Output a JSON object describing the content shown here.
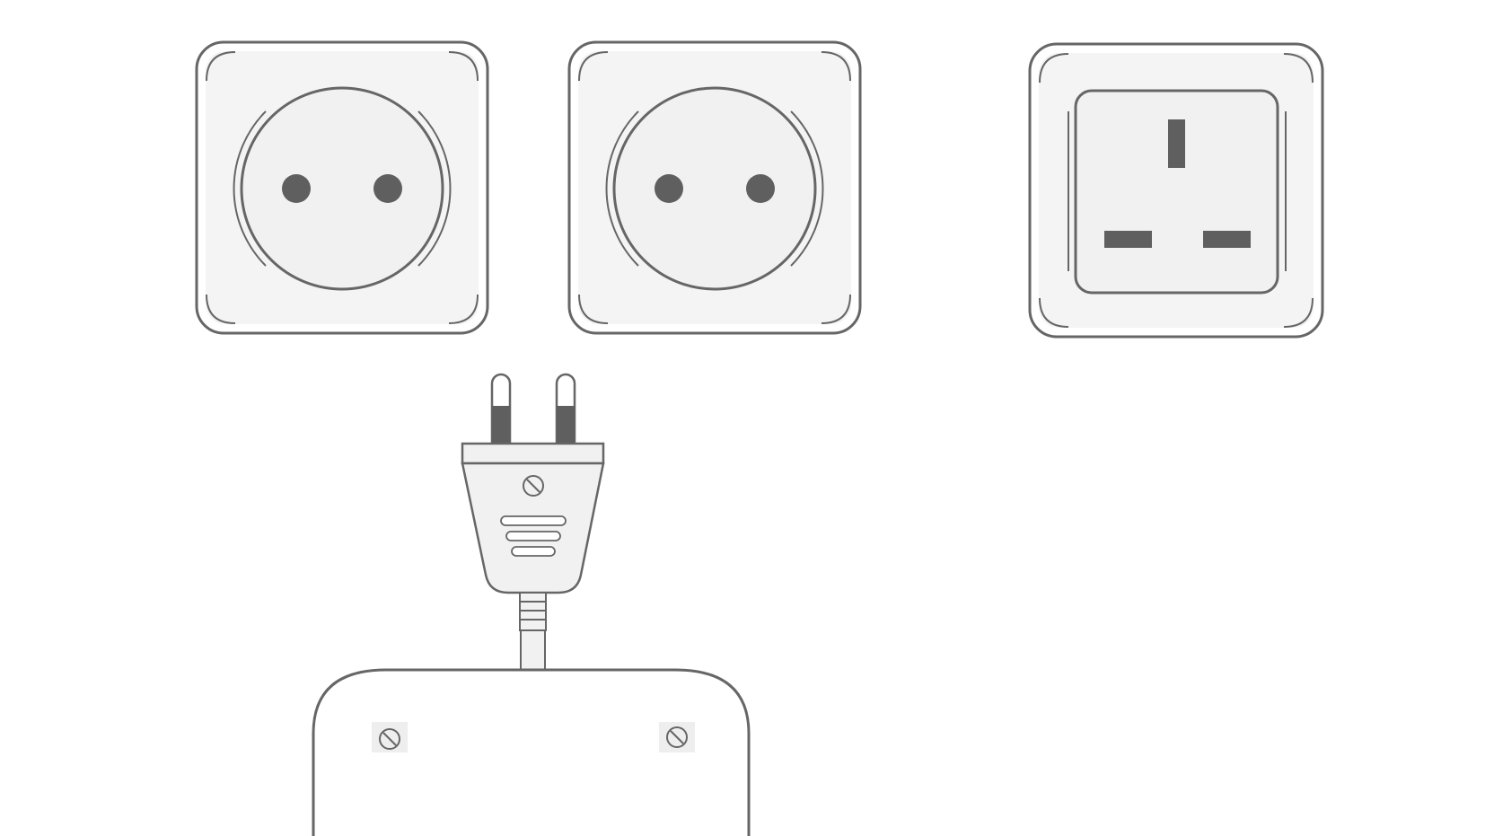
{
  "scene": {
    "outlets": [
      {
        "name": "type-c-socket-left",
        "type": "Type C/F round socket"
      },
      {
        "name": "type-c-socket-middle",
        "type": "Type C/F round socket"
      },
      {
        "name": "type-g-socket",
        "type": "Type G UK socket"
      }
    ],
    "plug": {
      "name": "europlug",
      "type": "Type C two-pin plug"
    },
    "device": {
      "name": "power-adapter-body"
    }
  },
  "colors": {
    "stroke": "#666666",
    "fill_light": "#f1f1f1",
    "fill_dark": "#5f5f5f",
    "background": "#ffffff"
  }
}
